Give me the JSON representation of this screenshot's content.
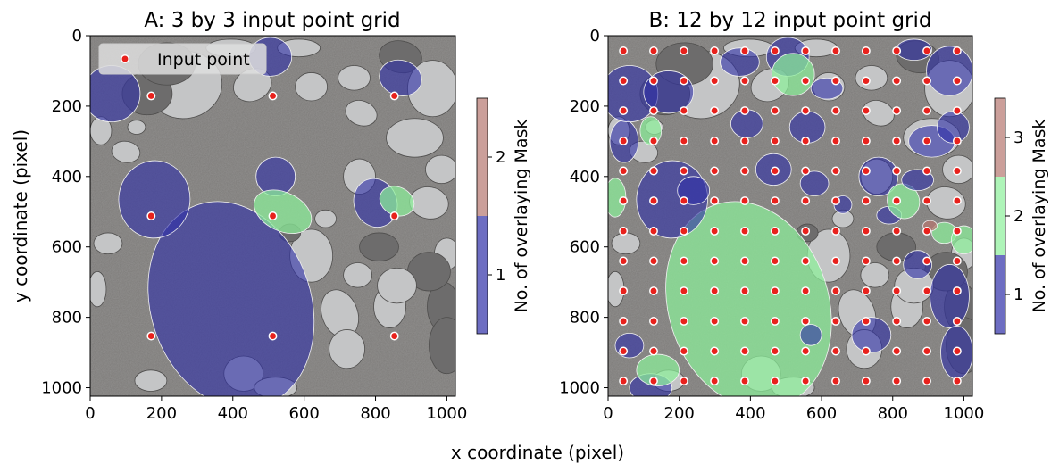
{
  "figure": {
    "shared_xlabel": "x coordinate (pixel)",
    "shared_ylabel": "y coordinate (pixel)"
  },
  "colors": {
    "mask_1": "#2f2fa8",
    "mask_2": "#8cf09a",
    "mask_3": "#b5766f",
    "point_fill": "#e8211c",
    "point_edge": "#ffffff",
    "photo_gravel": "#7c7a78",
    "stone_light": "#c4c5c6",
    "stone_dark": "#6d6c6c"
  },
  "chart_data": [
    {
      "type": "scatter",
      "title": "A: 3 by 3 input point grid",
      "xlabel": "",
      "ylabel": "y coordinate (pixel)",
      "xlim": [
        0,
        1024
      ],
      "ylim": [
        1024,
        0
      ],
      "xticks": [
        0,
        200,
        400,
        600,
        800,
        1000
      ],
      "yticks": [
        0,
        200,
        400,
        600,
        800,
        1000
      ],
      "legend": {
        "position": "upper-left",
        "entries": [
          "Input point"
        ]
      },
      "grid_n": 3,
      "series": [
        {
          "name": "Input point",
          "x": [
            171,
            512,
            853
          ],
          "y": [
            171,
            512,
            853
          ]
        }
      ],
      "colorbar": {
        "label": "No. of overlaying Mask",
        "levels": [
          1,
          2
        ],
        "colors": [
          "#2f2fa8",
          "#b5766f"
        ]
      }
    },
    {
      "type": "scatter",
      "title": "B: 12 by 12 input point grid",
      "xlabel": "",
      "ylabel": "",
      "xlim": [
        0,
        1024
      ],
      "ylim": [
        1024,
        0
      ],
      "xticks": [
        0,
        200,
        400,
        600,
        800,
        1000
      ],
      "yticks": [
        0,
        200,
        400,
        600,
        800,
        1000
      ],
      "grid_n": 12,
      "series": [
        {
          "name": "Input point",
          "x": [
            43,
            128,
            213,
            299,
            384,
            469,
            555,
            640,
            725,
            811,
            896,
            981
          ],
          "y": [
            43,
            128,
            213,
            299,
            384,
            469,
            555,
            640,
            725,
            811,
            896,
            981
          ]
        }
      ],
      "colorbar": {
        "label": "No. of overlaying Mask",
        "levels": [
          1,
          2,
          3
        ],
        "colors": [
          "#2f2fa8",
          "#8cf09a",
          "#b5766f"
        ]
      }
    }
  ]
}
